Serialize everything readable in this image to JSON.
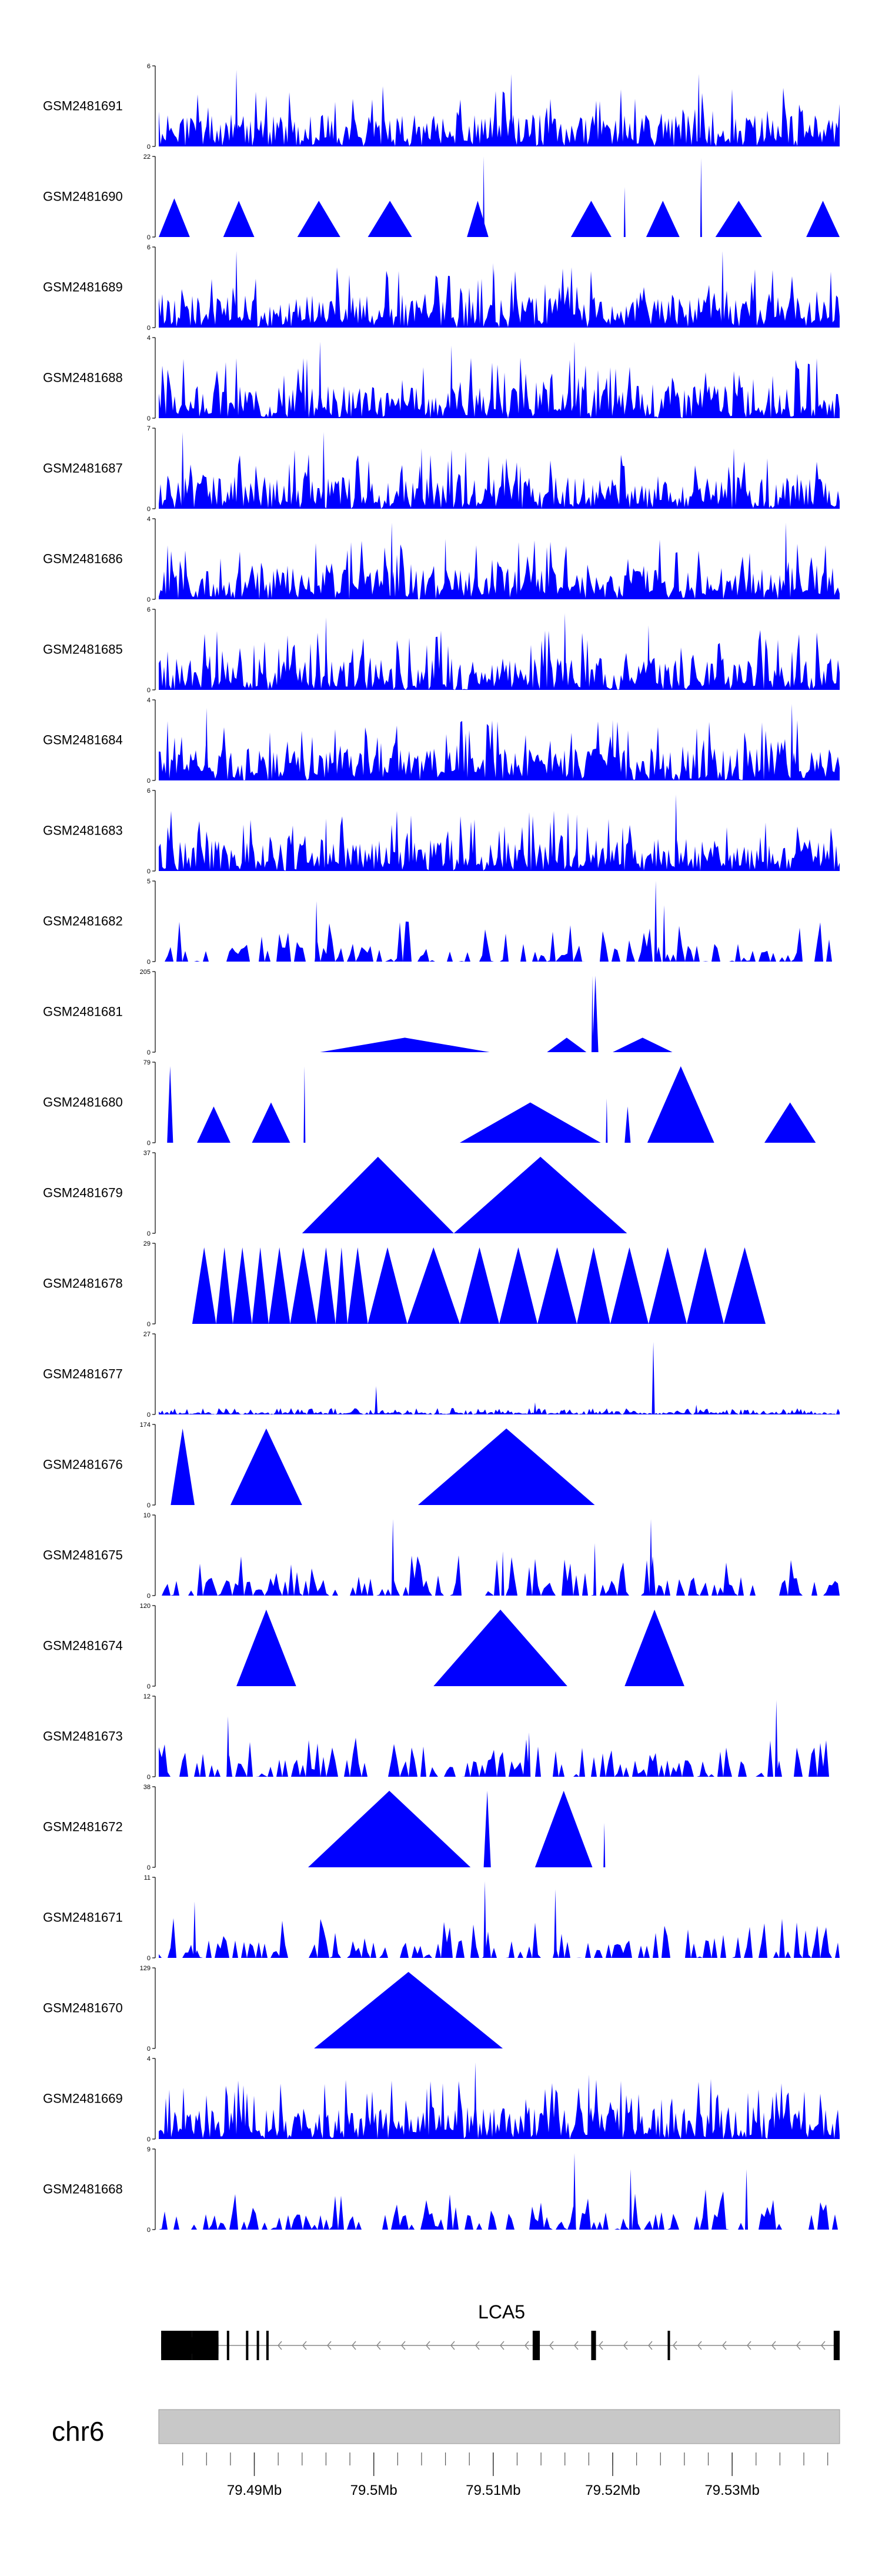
{
  "colors": {
    "signal": "#0000ff",
    "axis": "#000000",
    "ideogram": "#c8c8c8",
    "gene": "#000000"
  },
  "chart_data": {
    "type": "area",
    "chromosome": "chr6",
    "x_range_mb": [
      79.482,
      79.539
    ],
    "x_ticks": [
      {
        "value": 79.49,
        "label": "79.49Mb"
      },
      {
        "value": 79.5,
        "label": "79.5Mb"
      },
      {
        "value": 79.51,
        "label": "79.51Mb"
      },
      {
        "value": 79.52,
        "label": "79.52Mb"
      },
      {
        "value": 79.53,
        "label": "79.53Mb"
      }
    ],
    "tracks": [
      {
        "name": "GSM2481691",
        "ymin": "0",
        "ymax": "6",
        "pattern": "dense",
        "peaks": [
          [
            79.4885,
            0.95
          ],
          [
            79.5115,
            0.9
          ],
          [
            79.5272,
            0.9
          ]
        ],
        "seed": 11
      },
      {
        "name": "GSM2481690",
        "ymin": "0",
        "ymax": "22",
        "pattern": "tri",
        "tris": [
          [
            79.482,
            79.4846,
            0.48
          ],
          [
            79.4846,
            79.4874,
            0.0
          ],
          [
            79.4874,
            79.49,
            0.45
          ],
          [
            79.49,
            79.4936,
            0.0
          ],
          [
            79.4936,
            79.4972,
            0.45
          ],
          [
            79.4972,
            79.4995,
            0.0
          ],
          [
            79.4995,
            79.5032,
            0.45
          ],
          [
            79.5032,
            79.5078,
            0.0
          ],
          [
            79.5078,
            79.5096,
            0.45
          ],
          [
            79.5096,
            79.5165,
            0.0
          ],
          [
            79.5165,
            79.5199,
            0.45
          ],
          [
            79.5199,
            79.5228,
            0.0
          ],
          [
            79.5228,
            79.5256,
            0.45
          ],
          [
            79.5256,
            79.5286,
            0.0
          ],
          [
            79.5286,
            79.5325,
            0.45
          ],
          [
            79.5325,
            79.5362,
            0.0
          ],
          [
            79.5362,
            79.539,
            0.45
          ]
        ],
        "peaks": [
          [
            79.5092,
            1.0
          ],
          [
            79.521,
            0.62
          ],
          [
            79.5274,
            0.98
          ]
        ],
        "seed": 12
      },
      {
        "name": "GSM2481689",
        "ymin": "0",
        "ymax": "6",
        "pattern": "dense",
        "peaks": [
          [
            79.4885,
            0.95
          ],
          [
            79.51,
            0.8
          ],
          [
            79.5292,
            0.95
          ]
        ],
        "seed": 13
      },
      {
        "name": "GSM2481688",
        "ymin": "0",
        "ymax": "4",
        "pattern": "dense",
        "peaks": [
          [
            79.4955,
            0.95
          ],
          [
            79.5065,
            0.9
          ],
          [
            79.5168,
            0.95
          ]
        ],
        "seed": 14
      },
      {
        "name": "GSM2481687",
        "ymin": "0",
        "ymax": "7",
        "pattern": "dense",
        "peaks": [
          [
            79.484,
            0.95
          ],
          [
            79.4958,
            0.95
          ],
          [
            79.504,
            0.75
          ]
        ],
        "seed": 15
      },
      {
        "name": "GSM2481686",
        "ymin": "0",
        "ymax": "4",
        "pattern": "dense",
        "peaks": [
          [
            79.5015,
            0.95
          ],
          [
            79.506,
            0.75
          ],
          [
            79.5345,
            0.95
          ]
        ],
        "seed": 16
      },
      {
        "name": "GSM2481685",
        "ymin": "0",
        "ymax": "6",
        "pattern": "dense",
        "peaks": [
          [
            79.496,
            0.9
          ],
          [
            79.516,
            0.95
          ],
          [
            79.523,
            0.8
          ]
        ],
        "seed": 17
      },
      {
        "name": "GSM2481684",
        "ymin": "0",
        "ymax": "4",
        "pattern": "dense",
        "peaks": [
          [
            79.486,
            0.9
          ],
          [
            79.535,
            0.95
          ],
          [
            79.52,
            0.75
          ]
        ],
        "seed": 18
      },
      {
        "name": "GSM2481683",
        "ymin": "0",
        "ymax": "6",
        "pattern": "dense",
        "peaks": [
          [
            79.5253,
            0.95
          ],
          [
            79.517,
            0.7
          ],
          [
            79.496,
            0.65
          ]
        ],
        "seed": 19
      },
      {
        "name": "GSM2481682",
        "ymin": "0",
        "ymax": "5",
        "pattern": "sparse",
        "peaks": [
          [
            79.4952,
            0.75
          ],
          [
            79.5236,
            1.0
          ],
          [
            79.5243,
            0.7
          ]
        ],
        "seed": 20
      },
      {
        "name": "GSM2481681",
        "ymin": "0",
        "ymax": "205",
        "pattern": "tri",
        "tris": [
          [
            79.4955,
            79.5097,
            0.18
          ],
          [
            79.5097,
            79.5145,
            0.0
          ],
          [
            79.5145,
            79.5178,
            0.18
          ],
          [
            79.5178,
            79.5183,
            0.0
          ],
          [
            79.5183,
            79.5188,
            0.95
          ],
          [
            79.5188,
            79.52,
            0.0
          ],
          [
            79.52,
            79.525,
            0.18
          ],
          [
            79.525,
            79.5277,
            0.0
          ]
        ],
        "peaks": [
          [
            79.5183,
            0.95
          ]
        ],
        "seed": 21
      },
      {
        "name": "GSM2481680",
        "ymin": "0",
        "ymax": "79",
        "pattern": "tri",
        "tris": [
          [
            79.4827,
            79.4832,
            0.95
          ],
          [
            79.4832,
            79.4852,
            0.0
          ],
          [
            79.4852,
            79.488,
            0.45
          ],
          [
            79.488,
            79.4898,
            0.0
          ],
          [
            79.4898,
            79.493,
            0.5
          ],
          [
            79.493,
            79.5072,
            0.0
          ],
          [
            79.5072,
            79.519,
            0.5
          ],
          [
            79.519,
            79.521,
            0.0
          ],
          [
            79.521,
            79.5215,
            0.45
          ],
          [
            79.5215,
            79.5229,
            0.0
          ],
          [
            79.5229,
            79.5285,
            0.95
          ],
          [
            79.5285,
            79.5327,
            0.0
          ],
          [
            79.5327,
            79.537,
            0.5
          ]
        ],
        "peaks": [
          [
            79.4942,
            0.95
          ],
          [
            79.5195,
            0.55
          ]
        ],
        "seed": 22
      },
      {
        "name": "GSM2481679",
        "ymin": "0",
        "ymax": "37",
        "pattern": "tri",
        "tris": [
          [
            79.494,
            79.5067,
            0.95
          ],
          [
            79.5067,
            79.5212,
            0.95
          ]
        ],
        "peaks": [],
        "seed": 23
      },
      {
        "name": "GSM2481678",
        "ymin": "0",
        "ymax": "29",
        "pattern": "tri",
        "tris": [
          [
            79.4848,
            79.4868,
            0.95
          ],
          [
            79.4868,
            79.4882,
            0.95
          ],
          [
            79.4882,
            79.4898,
            0.95
          ],
          [
            79.4898,
            79.4912,
            0.95
          ],
          [
            79.4912,
            79.493,
            0.95
          ],
          [
            79.493,
            79.4952,
            0.95
          ],
          [
            79.4952,
            79.4968,
            0.95
          ],
          [
            79.4968,
            79.4978,
            0.95
          ],
          [
            79.4978,
            79.4995,
            0.95
          ],
          [
            79.4995,
            79.5028,
            0.95
          ],
          [
            79.5028,
            79.5072,
            0.95
          ],
          [
            79.5072,
            79.5105,
            0.95
          ],
          [
            79.5105,
            79.5137,
            0.95
          ],
          [
            79.5137,
            79.517,
            0.95
          ],
          [
            79.517,
            79.5198,
            0.95
          ],
          [
            79.5198,
            79.523,
            0.95
          ],
          [
            79.523,
            79.5262,
            0.95
          ],
          [
            79.5262,
            79.5293,
            0.95
          ],
          [
            79.5293,
            79.5328,
            0.95
          ]
        ],
        "peaks": [],
        "seed": 24
      },
      {
        "name": "GSM2481677",
        "ymin": "0",
        "ymax": "27",
        "pattern": "low",
        "peaks": [
          [
            79.5002,
            0.35
          ],
          [
            79.5234,
            0.9
          ],
          [
            79.5135,
            0.15
          ],
          [
            79.527,
            0.12
          ]
        ],
        "seed": 25
      },
      {
        "name": "GSM2481676",
        "ymin": "0",
        "ymax": "174",
        "pattern": "tri",
        "tris": [
          [
            79.483,
            79.485,
            0.95
          ],
          [
            79.485,
            79.488,
            0.0
          ],
          [
            79.488,
            79.494,
            0.95
          ],
          [
            79.494,
            79.5037,
            0.0
          ],
          [
            79.5037,
            79.5185,
            0.95
          ],
          [
            79.5185,
            79.524,
            0.0
          ]
        ],
        "peaks": [],
        "seed": 26
      },
      {
        "name": "GSM2481675",
        "ymin": "0",
        "ymax": "10",
        "pattern": "sparse",
        "peaks": [
          [
            79.5016,
            0.95
          ],
          [
            79.5232,
            0.95
          ],
          [
            79.5185,
            0.65
          ],
          [
            79.5108,
            0.55
          ]
        ],
        "seed": 27
      },
      {
        "name": "GSM2481674",
        "ymin": "0",
        "ymax": "120",
        "pattern": "tri",
        "tris": [
          [
            79.4885,
            79.4935,
            0.95
          ],
          [
            79.4935,
            79.505,
            0.0
          ],
          [
            79.505,
            79.5162,
            0.95
          ],
          [
            79.5162,
            79.521,
            0.0
          ],
          [
            79.521,
            79.526,
            0.95
          ],
          [
            79.526,
            79.531,
            0.0
          ]
        ],
        "peaks": [],
        "seed": 28
      },
      {
        "name": "GSM2481673",
        "ymin": "0",
        "ymax": "12",
        "pattern": "sparse",
        "peaks": [
          [
            79.4878,
            0.75
          ],
          [
            79.5337,
            0.95
          ],
          [
            79.513,
            0.55
          ]
        ],
        "seed": 29
      },
      {
        "name": "GSM2481672",
        "ymin": "0",
        "ymax": "38",
        "pattern": "tri",
        "tris": [
          [
            79.4945,
            79.5081,
            0.95
          ],
          [
            79.5081,
            79.5092,
            0.0
          ],
          [
            79.5092,
            79.5098,
            0.95
          ],
          [
            79.5098,
            79.5135,
            0.0
          ],
          [
            79.5135,
            79.5183,
            0.95
          ],
          [
            79.5183,
            79.5265,
            0.0
          ]
        ],
        "peaks": [
          [
            79.5193,
            0.55
          ]
        ],
        "seed": 30
      },
      {
        "name": "GSM2481671",
        "ymin": "0",
        "ymax": "11",
        "pattern": "sparse",
        "peaks": [
          [
            79.5093,
            0.95
          ],
          [
            79.5152,
            0.85
          ],
          [
            79.485,
            0.7
          ]
        ],
        "seed": 31
      },
      {
        "name": "GSM2481670",
        "ymin": "0",
        "ymax": "129",
        "pattern": "tri",
        "tris": [
          [
            79.495,
            79.5108,
            0.95
          ],
          [
            79.5108,
            79.5235,
            0.0
          ]
        ],
        "peaks": [],
        "seed": 32
      },
      {
        "name": "GSM2481669",
        "ymin": "0",
        "ymax": "4",
        "pattern": "dense",
        "peaks": [
          [
            79.5085,
            0.95
          ],
          [
            79.518,
            0.8
          ]
        ],
        "seed": 33
      },
      {
        "name": "GSM2481668",
        "ymin": "0",
        "ymax": "9",
        "pattern": "sparse",
        "peaks": [
          [
            79.5168,
            0.95
          ],
          [
            79.5215,
            0.75
          ],
          [
            79.5312,
            0.75
          ]
        ],
        "seed": 34
      }
    ],
    "gene": {
      "name": "LCA5",
      "strand": "-",
      "exons": [
        {
          "start": 79.4822,
          "end": 79.4848,
          "thick": true
        },
        {
          "start": 79.4848,
          "end": 79.487,
          "thick": false
        },
        {
          "start": 79.4877,
          "end": 79.4879,
          "thick": false
        },
        {
          "start": 79.4893,
          "end": 79.4895,
          "thick": false
        },
        {
          "start": 79.4902,
          "end": 79.4904,
          "thick": false
        },
        {
          "start": 79.491,
          "end": 79.4912,
          "thick": false
        },
        {
          "start": 79.5133,
          "end": 79.5139,
          "thick": true
        },
        {
          "start": 79.5182,
          "end": 79.5186,
          "thick": false
        },
        {
          "start": 79.5246,
          "end": 79.5248,
          "thick": false
        },
        {
          "start": 79.5385,
          "end": 79.539,
          "thick": false
        }
      ]
    }
  }
}
